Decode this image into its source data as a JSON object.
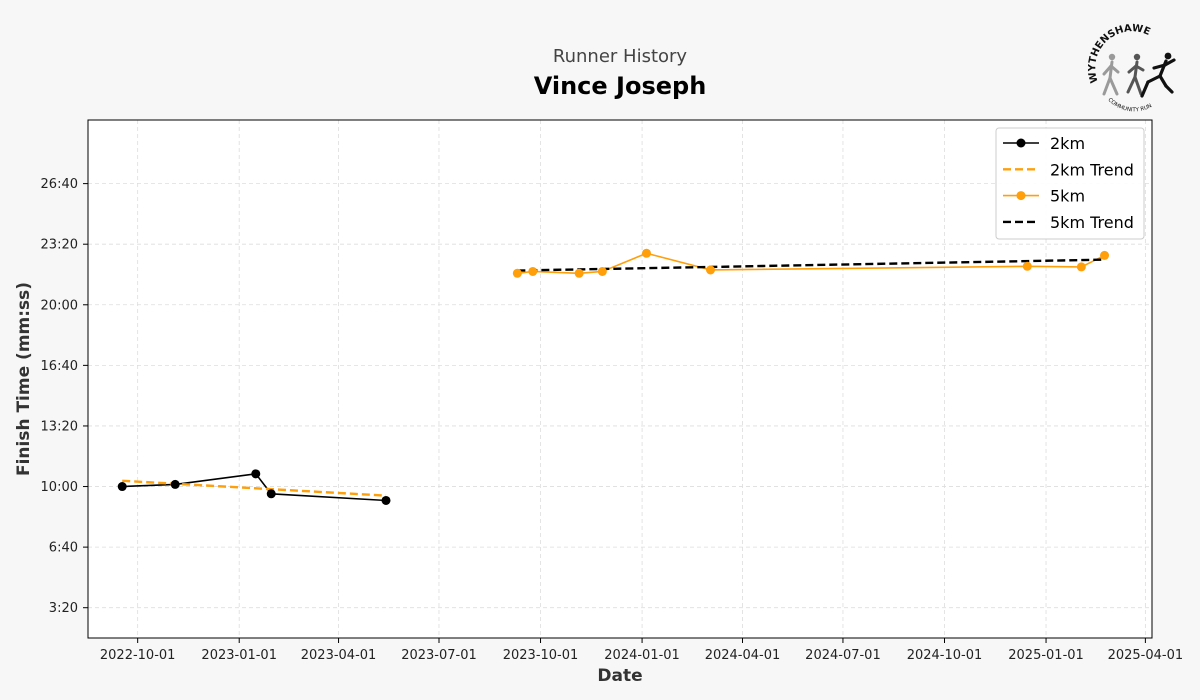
{
  "header": {
    "subtitle": "Runner History",
    "title": "Vince Joseph"
  },
  "logo": {
    "icon": "runner-silhouettes-icon",
    "top_text": "WYTHENSHAWE",
    "bottom_text": "COMMUNITY RUN"
  },
  "colors": {
    "background": "#f7f7f7",
    "plot_background": "#ffffff",
    "series_2km": "#000000",
    "series_5km": "#ff9f0a",
    "grid": "#dddddd"
  },
  "chart_data": {
    "type": "line",
    "xlabel": "Date",
    "ylabel": "Finish Time (mm:ss)",
    "xlim": [
      "2022-08-17",
      "2025-04-07"
    ],
    "ylim": [
      "1:40",
      "30:10"
    ],
    "x_ticks": [
      "2022-10-01",
      "2023-01-01",
      "2023-04-01",
      "2023-07-01",
      "2023-10-01",
      "2024-01-01",
      "2024-04-01",
      "2024-07-01",
      "2024-10-01",
      "2025-01-01",
      "2025-04-01"
    ],
    "y_ticks": [
      "3:20",
      "6:40",
      "10:00",
      "13:20",
      "16:40",
      "20:00",
      "23:20",
      "26:40"
    ],
    "grid": true,
    "legend_position": "top-right",
    "series": [
      {
        "name": "2km",
        "style": "solid-marker",
        "color": "#000000",
        "points": [
          {
            "x": "2022-09-17",
            "y": "10:00"
          },
          {
            "x": "2022-11-04",
            "y": "10:07"
          },
          {
            "x": "2023-01-16",
            "y": "10:42"
          },
          {
            "x": "2023-01-30",
            "y": "9:36"
          },
          {
            "x": "2023-05-14",
            "y": "9:14"
          }
        ]
      },
      {
        "name": "2km Trend",
        "style": "dashed",
        "color": "#ff9f0a",
        "points": [
          {
            "x": "2022-09-17",
            "y": "10:19"
          },
          {
            "x": "2023-05-14",
            "y": "9:30"
          }
        ]
      },
      {
        "name": "5km",
        "style": "solid-marker",
        "color": "#ff9f0a",
        "points": [
          {
            "x": "2023-09-10",
            "y": "21:44"
          },
          {
            "x": "2023-09-24",
            "y": "21:50"
          },
          {
            "x": "2023-11-05",
            "y": "21:44"
          },
          {
            "x": "2023-11-26",
            "y": "21:50"
          },
          {
            "x": "2024-01-05",
            "y": "22:50"
          },
          {
            "x": "2024-03-03",
            "y": "21:55"
          },
          {
            "x": "2024-12-15",
            "y": "22:07"
          },
          {
            "x": "2025-02-02",
            "y": "22:05"
          },
          {
            "x": "2025-02-23",
            "y": "22:43"
          }
        ]
      },
      {
        "name": "5km Trend",
        "style": "dashed",
        "color": "#000000",
        "points": [
          {
            "x": "2023-09-10",
            "y": "21:53"
          },
          {
            "x": "2025-02-23",
            "y": "22:29"
          }
        ]
      }
    ]
  }
}
